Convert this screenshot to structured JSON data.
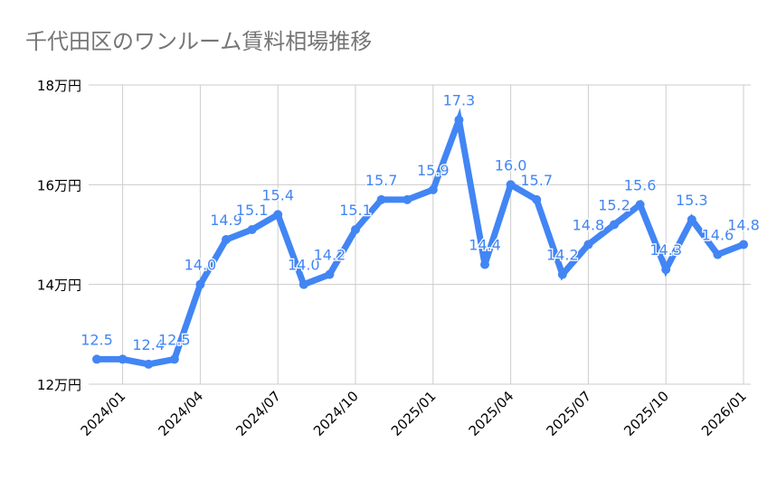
{
  "chart_data": {
    "type": "line",
    "title": "千代田区のワンルーム賃料相場推移",
    "xlabel": "",
    "ylabel": "",
    "ylim": [
      12,
      18
    ],
    "y_ticks": [
      "12万円",
      "14万円",
      "16万円",
      "18万円"
    ],
    "y_tick_values": [
      12,
      14,
      16,
      18
    ],
    "x_ticks": [
      "2024/01",
      "2024/04",
      "2024/07",
      "2024/10",
      "2025/01",
      "2025/04",
      "2025/07",
      "2025/10",
      "2026/01"
    ],
    "x": [
      "2023/12",
      "2024/01",
      "2024/02",
      "2024/03",
      "2024/04",
      "2024/05",
      "2024/06",
      "2024/07",
      "2024/08",
      "2024/09",
      "2024/10",
      "2024/11",
      "2024/12",
      "2025/01",
      "2025/02",
      "2025/03",
      "2025/04",
      "2025/05",
      "2025/06",
      "2025/07",
      "2025/08",
      "2025/09",
      "2025/10",
      "2025/11",
      "2025/12",
      "2026/01"
    ],
    "values": [
      12.5,
      12.5,
      12.4,
      12.5,
      14.0,
      14.9,
      15.1,
      15.4,
      14.0,
      14.2,
      15.1,
      15.7,
      15.7,
      15.9,
      17.3,
      14.4,
      16.0,
      15.7,
      14.2,
      14.8,
      15.2,
      15.6,
      14.3,
      15.3,
      14.6,
      14.8
    ],
    "data_labels": [
      "12.5",
      null,
      "12.4",
      "12.5",
      "14.0",
      "14.9",
      "15.1",
      "15.4",
      "14.0",
      "14.2",
      "15.1",
      "15.7",
      null,
      "15.9",
      "17.3",
      "14.4",
      "16.0",
      "15.7",
      "14.2",
      "14.8",
      "15.2",
      "15.6",
      "14.3",
      "15.3",
      "14.6",
      "14.8"
    ],
    "grid": true,
    "legend": "none",
    "line_color": "#4285f4"
  }
}
